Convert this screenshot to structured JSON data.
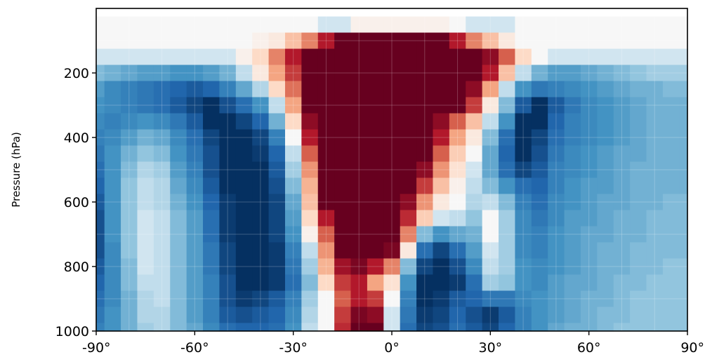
{
  "chart_data": {
    "type": "heatmap",
    "title": "",
    "xlabel": "",
    "ylabel": "Pressure (hPa)",
    "x_ticks": [
      "-90°",
      "-60°",
      "-30°",
      "0°",
      "30°",
      "60°",
      "90°"
    ],
    "y_ticks": [
      "200",
      "400",
      "600",
      "800",
      "1000"
    ],
    "x_range": [
      -90,
      90
    ],
    "y_range": [
      1000,
      0
    ],
    "y_inverted": true,
    "grid": true,
    "colormap": "RdBu_r",
    "colorbar_shown": false,
    "color_range_values": [
      -1,
      1
    ],
    "latitudes": [
      -90,
      -85,
      -80,
      -75,
      -70,
      -65,
      -60,
      -55,
      -50,
      -45,
      -40,
      -35,
      -30,
      -25,
      -20,
      -15,
      -10,
      -5,
      0,
      5,
      10,
      15,
      20,
      25,
      30,
      35,
      40,
      45,
      50,
      55,
      60,
      65,
      70,
      75,
      80,
      85,
      90
    ],
    "pressure_levels": [
      50,
      100,
      150,
      200,
      250,
      300,
      350,
      400,
      450,
      500,
      550,
      600,
      650,
      700,
      750,
      800,
      850,
      900,
      950,
      1000
    ],
    "values": [
      [
        0.0,
        0.0,
        0.0,
        0.0,
        0.0,
        0.0,
        0.0,
        0.0,
        0.0,
        0.0,
        0.0,
        0.0,
        0.0,
        0.0,
        -0.05,
        -0.05,
        0.05,
        0.05,
        0.05,
        0.05,
        0.05,
        0.05,
        0.0,
        -0.05,
        -0.05,
        -0.05,
        0.0,
        0.0,
        0.0,
        0.0,
        0.0,
        0.0,
        0.0,
        0.0,
        0.0,
        0.0,
        0.0
      ],
      [
        0.0,
        0.0,
        0.0,
        0.0,
        0.0,
        0.0,
        0.0,
        0.0,
        0.0,
        0.0,
        0.05,
        0.1,
        0.3,
        0.5,
        0.8,
        1.0,
        1.0,
        1.0,
        1.0,
        1.0,
        1.0,
        1.0,
        0.8,
        0.5,
        0.3,
        0.1,
        0.0,
        0.0,
        0.0,
        0.0,
        0.0,
        0.0,
        0.0,
        0.0,
        0.0,
        0.0,
        0.0
      ],
      [
        -0.05,
        -0.05,
        -0.05,
        -0.05,
        -0.05,
        -0.05,
        -0.05,
        -0.05,
        -0.05,
        0.05,
        0.2,
        0.5,
        0.8,
        1.0,
        1.0,
        1.0,
        1.0,
        1.0,
        1.0,
        1.0,
        1.0,
        1.0,
        1.0,
        1.0,
        0.9,
        0.6,
        0.2,
        0.0,
        -0.05,
        -0.05,
        -0.05,
        -0.05,
        -0.05,
        -0.05,
        -0.05,
        -0.05,
        -0.05
      ],
      [
        -0.3,
        -0.35,
        -0.4,
        -0.45,
        -0.45,
        -0.5,
        -0.5,
        -0.45,
        -0.35,
        -0.1,
        0.1,
        0.4,
        0.7,
        1.0,
        1.0,
        1.0,
        1.0,
        1.0,
        1.0,
        1.0,
        1.0,
        1.0,
        1.0,
        1.0,
        0.8,
        0.3,
        -0.1,
        -0.35,
        -0.45,
        -0.45,
        -0.4,
        -0.35,
        -0.3,
        -0.25,
        -0.2,
        -0.2,
        -0.2
      ],
      [
        -0.45,
        -0.55,
        -0.6,
        -0.65,
        -0.7,
        -0.75,
        -0.8,
        -0.75,
        -0.6,
        -0.4,
        -0.15,
        0.2,
        0.55,
        1.0,
        1.0,
        1.0,
        1.0,
        1.0,
        1.0,
        1.0,
        1.0,
        1.0,
        1.0,
        0.9,
        0.4,
        -0.1,
        -0.5,
        -0.65,
        -0.6,
        -0.55,
        -0.5,
        -0.45,
        -0.4,
        -0.35,
        -0.35,
        -0.3,
        -0.3
      ],
      [
        -0.5,
        -0.55,
        -0.6,
        -0.65,
        -0.7,
        -0.8,
        -0.9,
        -1.0,
        -0.85,
        -0.7,
        -0.5,
        -0.1,
        0.4,
        1.0,
        1.0,
        1.0,
        1.0,
        1.0,
        1.0,
        1.0,
        1.0,
        1.0,
        1.0,
        0.7,
        0.1,
        -0.3,
        -0.8,
        -1.0,
        -0.8,
        -0.65,
        -0.55,
        -0.5,
        -0.45,
        -0.4,
        -0.35,
        -0.35,
        -0.35
      ],
      [
        -0.55,
        -0.6,
        -0.55,
        -0.5,
        -0.55,
        -0.65,
        -0.8,
        -1.0,
        -1.0,
        -0.9,
        -0.75,
        -0.35,
        0.2,
        0.9,
        1.0,
        1.0,
        1.0,
        1.0,
        1.0,
        1.0,
        1.0,
        0.9,
        0.6,
        0.3,
        -0.1,
        -0.5,
        -1.0,
        -1.0,
        -0.75,
        -0.6,
        -0.55,
        -0.5,
        -0.45,
        -0.4,
        -0.35,
        -0.35,
        -0.35
      ],
      [
        -0.6,
        -0.55,
        -0.45,
        -0.35,
        -0.4,
        -0.55,
        -0.7,
        -0.9,
        -1.0,
        -1.0,
        -0.9,
        -0.6,
        0.0,
        0.8,
        1.0,
        1.0,
        1.0,
        1.0,
        1.0,
        1.0,
        1.0,
        0.8,
        0.4,
        0.1,
        -0.3,
        -0.7,
        -1.0,
        -0.9,
        -0.7,
        -0.6,
        -0.55,
        -0.5,
        -0.45,
        -0.4,
        -0.35,
        -0.35,
        -0.35
      ],
      [
        -0.65,
        -0.5,
        -0.35,
        -0.25,
        -0.3,
        -0.5,
        -0.65,
        -0.85,
        -1.0,
        -1.0,
        -0.95,
        -0.75,
        -0.1,
        0.6,
        1.0,
        1.0,
        1.0,
        1.0,
        1.0,
        1.0,
        1.0,
        0.6,
        0.25,
        0.0,
        -0.4,
        -0.75,
        -1.0,
        -0.85,
        -0.65,
        -0.55,
        -0.5,
        -0.45,
        -0.4,
        -0.4,
        -0.35,
        -0.35,
        -0.35
      ],
      [
        -0.7,
        -0.5,
        -0.3,
        -0.15,
        -0.2,
        -0.45,
        -0.6,
        -0.85,
        -1.0,
        -1.0,
        -1.0,
        -0.8,
        -0.2,
        0.45,
        1.0,
        1.0,
        1.0,
        1.0,
        1.0,
        1.0,
        0.9,
        0.45,
        0.15,
        -0.05,
        -0.4,
        -0.7,
        -0.9,
        -0.8,
        -0.6,
        -0.55,
        -0.5,
        -0.45,
        -0.4,
        -0.35,
        -0.35,
        -0.35,
        -0.35
      ],
      [
        -0.75,
        -0.5,
        -0.25,
        -0.1,
        -0.15,
        -0.4,
        -0.55,
        -0.8,
        -1.0,
        -1.0,
        -1.0,
        -0.85,
        -0.3,
        0.35,
        1.0,
        1.0,
        1.0,
        1.0,
        1.0,
        1.0,
        0.7,
        0.3,
        0.05,
        -0.1,
        -0.3,
        -0.5,
        -0.7,
        -0.75,
        -0.6,
        -0.5,
        -0.45,
        -0.45,
        -0.4,
        -0.35,
        -0.35,
        -0.35,
        -0.35
      ],
      [
        -0.8,
        -0.5,
        -0.25,
        -0.1,
        -0.15,
        -0.35,
        -0.5,
        -0.75,
        -0.95,
        -1.0,
        -1.0,
        -0.9,
        -0.4,
        0.3,
        1.0,
        1.0,
        1.0,
        1.0,
        1.0,
        0.9,
        0.45,
        0.1,
        0.0,
        -0.15,
        -0.1,
        -0.3,
        -0.6,
        -0.7,
        -0.55,
        -0.5,
        -0.45,
        -0.4,
        -0.4,
        -0.35,
        -0.35,
        -0.3,
        -0.3
      ],
      [
        -0.85,
        -0.5,
        -0.25,
        -0.05,
        -0.1,
        -0.3,
        -0.45,
        -0.7,
        -0.95,
        -1.0,
        -1.0,
        -0.9,
        -0.45,
        0.2,
        0.8,
        1.0,
        1.0,
        1.0,
        1.0,
        0.75,
        0.25,
        -0.05,
        -0.1,
        -0.25,
        0.0,
        -0.2,
        -0.55,
        -0.65,
        -0.55,
        -0.45,
        -0.45,
        -0.4,
        -0.35,
        -0.35,
        -0.3,
        -0.3,
        -0.3
      ],
      [
        -0.85,
        -0.5,
        -0.25,
        -0.05,
        -0.1,
        -0.3,
        -0.45,
        -0.7,
        -0.95,
        -1.0,
        -1.0,
        -0.9,
        -0.5,
        0.05,
        0.6,
        1.0,
        1.0,
        1.0,
        1.0,
        0.5,
        -0.3,
        -0.5,
        -0.4,
        -0.35,
        0.0,
        -0.2,
        -0.55,
        -0.6,
        -0.5,
        -0.45,
        -0.4,
        -0.4,
        -0.35,
        -0.35,
        -0.3,
        -0.3,
        -0.3
      ],
      [
        -0.85,
        -0.55,
        -0.25,
        -0.05,
        -0.1,
        -0.3,
        -0.45,
        -0.65,
        -0.9,
        -1.0,
        -1.0,
        -0.95,
        -0.6,
        -0.1,
        0.45,
        1.0,
        1.0,
        1.0,
        0.95,
        0.1,
        -0.7,
        -0.9,
        -0.7,
        -0.45,
        -0.05,
        -0.2,
        -0.55,
        -0.6,
        -0.5,
        -0.45,
        -0.4,
        -0.35,
        -0.35,
        -0.3,
        -0.3,
        -0.3,
        -0.3
      ],
      [
        -0.8,
        -0.55,
        -0.3,
        -0.05,
        -0.1,
        -0.3,
        -0.45,
        -0.65,
        -0.9,
        -1.0,
        -1.0,
        -0.95,
        -0.65,
        -0.2,
        0.35,
        0.85,
        0.95,
        0.8,
        0.5,
        -0.3,
        -0.9,
        -1.0,
        -0.85,
        -0.55,
        -0.1,
        -0.2,
        -0.5,
        -0.55,
        -0.5,
        -0.45,
        -0.4,
        -0.35,
        -0.35,
        -0.3,
        -0.3,
        -0.25,
        -0.25
      ],
      [
        -0.75,
        -0.55,
        -0.3,
        -0.1,
        -0.1,
        -0.3,
        -0.45,
        -0.6,
        -0.85,
        -1.0,
        -1.0,
        -0.95,
        -0.7,
        -0.3,
        0.2,
        0.7,
        0.8,
        0.4,
        0.15,
        -0.5,
        -1.0,
        -1.0,
        -0.95,
        -0.7,
        -0.2,
        -0.25,
        -0.5,
        -0.55,
        -0.45,
        -0.4,
        -0.4,
        -0.35,
        -0.3,
        -0.3,
        -0.25,
        -0.25,
        -0.25
      ],
      [
        -0.7,
        -0.55,
        -0.35,
        -0.15,
        -0.1,
        -0.3,
        -0.45,
        -0.6,
        -0.85,
        -0.95,
        -0.9,
        -0.8,
        -0.6,
        -0.2,
        0.0,
        0.6,
        0.8,
        0.7,
        0.0,
        -0.6,
        -1.0,
        -0.95,
        -0.8,
        -0.75,
        -0.65,
        -0.65,
        -0.55,
        -0.5,
        -0.45,
        -0.4,
        -0.35,
        -0.35,
        -0.3,
        -0.25,
        -0.25,
        -0.25,
        -0.25
      ],
      [
        -0.65,
        -0.5,
        -0.35,
        -0.15,
        -0.15,
        -0.3,
        -0.45,
        -0.6,
        -0.8,
        -0.85,
        -0.8,
        -0.75,
        -0.55,
        -0.15,
        0.0,
        0.7,
        0.95,
        0.9,
        -0.05,
        -0.65,
        -0.95,
        -0.9,
        -0.75,
        -0.85,
        -0.95,
        -0.8,
        -0.6,
        -0.5,
        -0.45,
        -0.4,
        -0.35,
        -0.3,
        -0.3,
        -0.25,
        -0.25,
        -0.25,
        -0.25
      ],
      [
        -0.6,
        -0.5,
        -0.35,
        -0.2,
        -0.15,
        -0.3,
        -0.4,
        -0.55,
        -0.7,
        -0.75,
        -0.75,
        -0.7,
        -0.5,
        -0.1,
        0.0,
        0.75,
        1.0,
        1.0,
        -0.05,
        -0.7,
        -0.9,
        -0.85,
        -0.7,
        -0.8,
        -0.9,
        -0.75,
        -0.6,
        -0.5,
        -0.4,
        -0.35,
        -0.35,
        -0.3,
        -0.25,
        -0.25,
        -0.25,
        -0.25,
        -0.25
      ]
    ]
  }
}
